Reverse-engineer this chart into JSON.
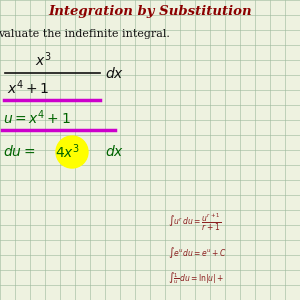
{
  "title": "Integration by Substitution",
  "title_color": "#8B0000",
  "bg_color": "#eef2e0",
  "grid_color": "#9ab89a",
  "text_color": "#111111",
  "green_color": "#006400",
  "magenta_color": "#cc00cc",
  "highlight_color": "#ffff00",
  "figsize": [
    3.0,
    3.0
  ],
  "dpi": 100
}
